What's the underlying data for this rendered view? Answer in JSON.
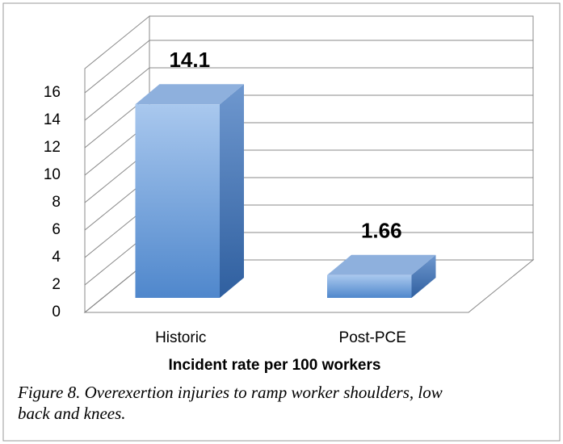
{
  "chart_data": {
    "type": "bar3d",
    "categories": [
      "Historic",
      "Post-PCE"
    ],
    "values": [
      14.1,
      1.66
    ],
    "color": "#5b8fd0",
    "x_label": "Incident rate per 100 workers",
    "ylim": [
      0,
      16
    ],
    "yticks": [
      0,
      2,
      4,
      6,
      8,
      10,
      12,
      14,
      16
    ],
    "grid": true,
    "caption": [
      "Figure 8. Overexertion injuries to ramp worker shoulders, low",
      "back and knees."
    ]
  }
}
